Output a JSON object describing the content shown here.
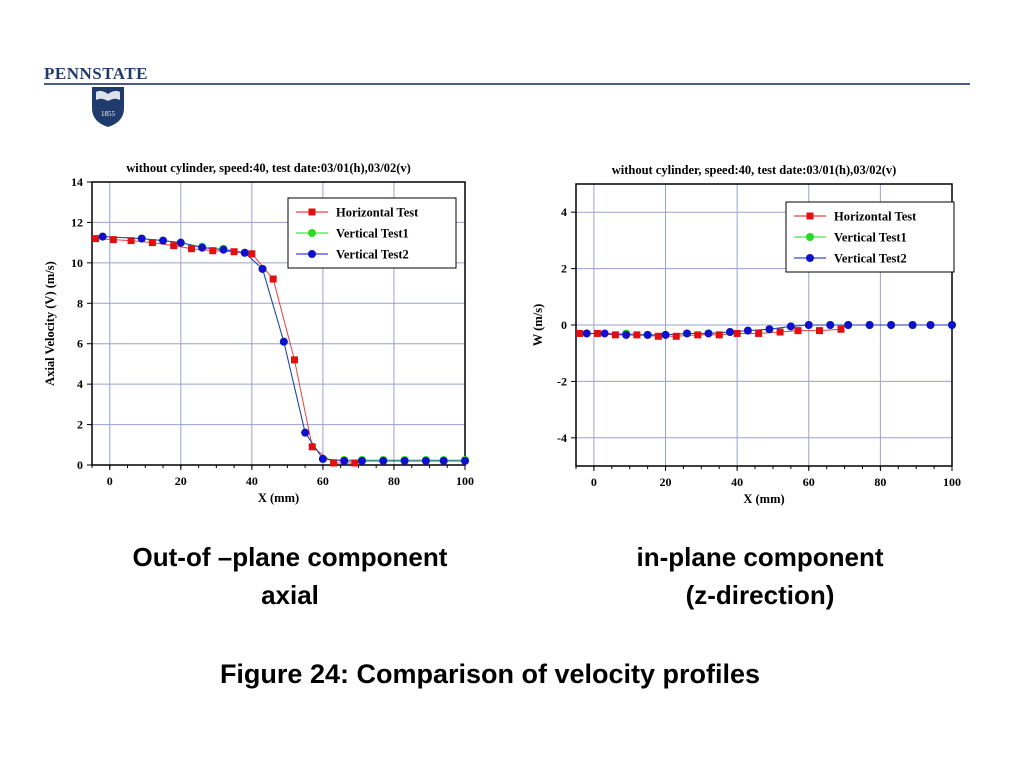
{
  "logo": {
    "name": "PENNSTATE",
    "year": "1855"
  },
  "captions": {
    "left_line1": "Out-of –plane component",
    "left_line2": "axial",
    "right_line1": "in-plane component",
    "right_line2": "(z-direction)",
    "figure": "Figure 24: Comparison of velocity profiles"
  },
  "colors": {
    "horizontal": "#e01010",
    "vertical1": "#22dd22",
    "vertical2": "#1010cc",
    "grid": "#9aa0d0"
  },
  "chart_data": [
    {
      "type": "scatter",
      "title": "without cylinder, speed:40, test date:03/01(h),03/02(v)",
      "xlabel": "X (mm)",
      "ylabel": "Axial Velocity (V) (m/s)",
      "xlim": [
        -5,
        100
      ],
      "ylim": [
        0,
        14
      ],
      "xticks": [
        0,
        20,
        40,
        60,
        80,
        100
      ],
      "yticks": [
        0,
        2,
        4,
        6,
        8,
        10,
        12,
        14
      ],
      "grid": true,
      "legend": "top-right",
      "series": [
        {
          "name": "Horizontal Test",
          "marker": "square",
          "x": [
            -4,
            1,
            6,
            12,
            18,
            23,
            29,
            35,
            40,
            46,
            52,
            57,
            63,
            69
          ],
          "y": [
            11.2,
            11.15,
            11.1,
            11.0,
            10.85,
            10.7,
            10.6,
            10.55,
            10.45,
            9.2,
            5.2,
            0.9,
            0.1,
            0.1
          ]
        },
        {
          "name": "Vertical Test1",
          "marker": "circle",
          "x": [
            -2,
            9,
            15,
            20,
            26,
            32,
            38,
            43,
            49,
            55,
            60,
            66,
            71,
            77,
            83,
            89,
            94,
            100
          ],
          "y": [
            11.3,
            11.2,
            11.1,
            11.0,
            10.8,
            10.7,
            10.5,
            9.7,
            6.1,
            1.6,
            0.3,
            0.25,
            0.25,
            0.25,
            0.25,
            0.25,
            0.25,
            0.25
          ]
        },
        {
          "name": "Vertical Test2",
          "marker": "circle",
          "x": [
            -2,
            9,
            15,
            20,
            26,
            32,
            38,
            43,
            49,
            55,
            60,
            66,
            71,
            77,
            83,
            89,
            94,
            100
          ],
          "y": [
            11.3,
            11.2,
            11.1,
            11.0,
            10.75,
            10.65,
            10.5,
            9.7,
            6.1,
            1.6,
            0.3,
            0.2,
            0.2,
            0.2,
            0.2,
            0.2,
            0.2,
            0.2
          ]
        }
      ]
    },
    {
      "type": "scatter",
      "title": "without cylinder, speed:40, test date:03/01(h),03/02(v)",
      "xlabel": "X (mm)",
      "ylabel": "W (m/s)",
      "xlim": [
        -5,
        100
      ],
      "ylim": [
        -5,
        5
      ],
      "xticks": [
        0,
        20,
        40,
        60,
        80,
        100
      ],
      "yticks": [
        -4,
        -2,
        0,
        2,
        4
      ],
      "grid": true,
      "legend": "top-right",
      "series": [
        {
          "name": "Horizontal Test",
          "marker": "square",
          "x": [
            -4,
            1,
            6,
            12,
            18,
            23,
            29,
            35,
            40,
            46,
            52,
            57,
            63,
            69
          ],
          "y": [
            -0.3,
            -0.3,
            -0.35,
            -0.35,
            -0.4,
            -0.4,
            -0.35,
            -0.35,
            -0.3,
            -0.3,
            -0.25,
            -0.2,
            -0.2,
            -0.15
          ]
        },
        {
          "name": "Vertical Test1",
          "marker": "circle",
          "x": [
            -2,
            9,
            15,
            20,
            26,
            32,
            38,
            43,
            49,
            55,
            60,
            66,
            71,
            77,
            83,
            89,
            94,
            100
          ],
          "y": [
            -0.3,
            -0.3,
            -0.35,
            -0.35,
            -0.3,
            -0.3,
            -0.25,
            -0.2,
            -0.15,
            -0.05,
            0.0,
            0.0,
            0.0,
            0.0,
            0.0,
            0.0,
            0.0,
            0.0
          ]
        },
        {
          "name": "Vertical Test2",
          "marker": "circle",
          "x": [
            -2,
            3,
            9,
            15,
            20,
            26,
            32,
            38,
            43,
            49,
            55,
            60,
            66,
            71,
            77,
            83,
            89,
            94,
            100
          ],
          "y": [
            -0.3,
            -0.3,
            -0.35,
            -0.35,
            -0.35,
            -0.3,
            -0.3,
            -0.25,
            -0.2,
            -0.15,
            -0.05,
            0.0,
            0.0,
            0.0,
            0.0,
            0.0,
            0.0,
            0.0,
            0.0
          ]
        }
      ]
    }
  ]
}
